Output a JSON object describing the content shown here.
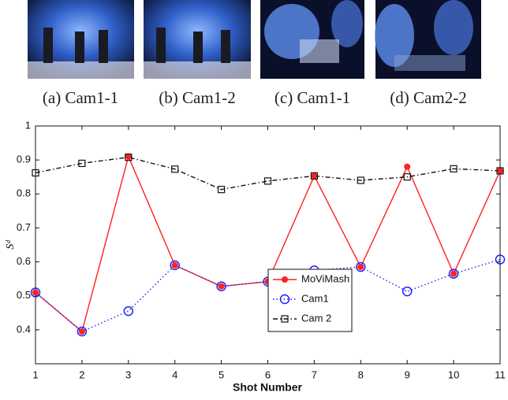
{
  "figure": {
    "panels": [
      {
        "caption": "(a) Cam1-1"
      },
      {
        "caption": "(b) Cam1-2"
      },
      {
        "caption": "(c) Cam1-1"
      },
      {
        "caption": "(d) Cam2-2"
      }
    ]
  },
  "chart_data": {
    "type": "line",
    "xlabel": "Shot Number",
    "ylabel": "Sᵈ",
    "x": [
      1,
      2,
      3,
      4,
      5,
      6,
      7,
      8,
      9,
      10,
      11
    ],
    "xlim": [
      1,
      11
    ],
    "xticks": [
      1,
      2,
      3,
      4,
      5,
      6,
      7,
      8,
      9,
      10,
      11
    ],
    "ylim": [
      0.3,
      1
    ],
    "yticks": [
      0.4,
      0.5,
      0.6,
      0.7,
      0.8,
      0.9,
      1
    ],
    "legend": "lower-center",
    "series": [
      {
        "name": "MoViMash",
        "color": "#ff2020",
        "marker": "dot",
        "line": "solid",
        "values": [
          0.51,
          0.395,
          0.91,
          0.59,
          0.528,
          0.542,
          0.853,
          0.585,
          0.88,
          0.565,
          0.868
        ]
      },
      {
        "name": "Cam1",
        "color": "#2020ff",
        "marker": "circle",
        "line": "dotted",
        "values": [
          0.51,
          0.395,
          0.455,
          0.59,
          0.528,
          0.542,
          0.575,
          0.585,
          0.513,
          0.565,
          0.607
        ]
      },
      {
        "name": "Cam 2",
        "color": "#111111",
        "marker": "square",
        "line": "dashdot",
        "values": [
          0.862,
          0.89,
          0.908,
          0.873,
          0.813,
          0.838,
          0.853,
          0.84,
          0.85,
          0.874,
          0.868
        ]
      }
    ]
  }
}
